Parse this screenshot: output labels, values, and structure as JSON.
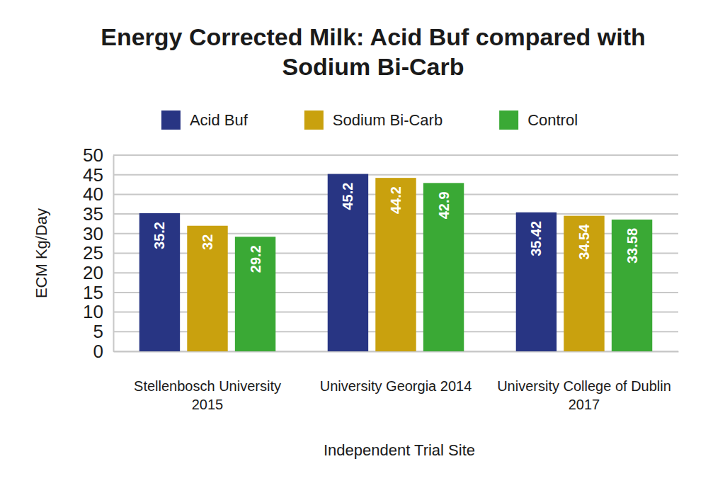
{
  "chart_data": {
    "type": "bar",
    "title": "Energy Corrected Milk: Acid Buf compared with Sodium Bi-Carb",
    "x_label": "Independent Trial Site",
    "y_label": "ECM Kg/Day",
    "categories": [
      "Stellenbosch University 2015",
      "University Georgia 2014",
      "University College of Dublin 2017"
    ],
    "series": [
      {
        "name": "Acid Buf",
        "color": "#283583",
        "values": [
          35.2,
          45.2,
          35.42
        ]
      },
      {
        "name": "Sodium Bi-Carb",
        "color": "#c9a10e",
        "values": [
          32,
          44.2,
          34.54
        ]
      },
      {
        "name": "Control",
        "color": "#3aa935",
        "values": [
          29.2,
          42.9,
          33.58
        ]
      }
    ],
    "ylim": [
      0,
      50
    ],
    "yticks": [
      0,
      5,
      10,
      15,
      20,
      25,
      30,
      35,
      40,
      45,
      50
    ],
    "grid": true,
    "legend": "top",
    "data_labels": true
  }
}
